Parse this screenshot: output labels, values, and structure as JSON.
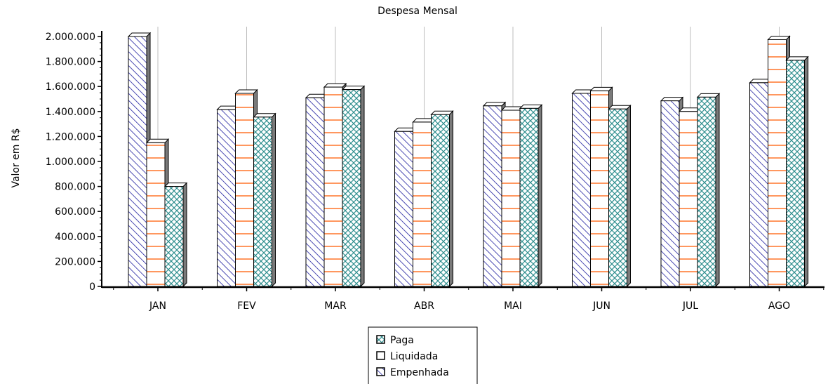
{
  "chart_data": {
    "type": "bar",
    "title": "Despesa Mensal",
    "xlabel": "",
    "ylabel": "Valor em R$",
    "categories": [
      "JAN",
      "FEV",
      "MAR",
      "ABR",
      "MAI",
      "JUN",
      "JUL",
      "AGO"
    ],
    "series": [
      {
        "name": "Empenhada",
        "values": [
          2000000,
          1415000,
          1510000,
          1240000,
          1445000,
          1545000,
          1485000,
          1630000
        ]
      },
      {
        "name": "Liquidada",
        "values": [
          1150000,
          1545000,
          1595000,
          1315000,
          1410000,
          1565000,
          1400000,
          1975000
        ]
      },
      {
        "name": "Paga",
        "values": [
          800000,
          1355000,
          1575000,
          1375000,
          1425000,
          1420000,
          1515000,
          1810000
        ]
      }
    ],
    "ylim": [
      0,
      2000000
    ],
    "yticks": [
      "0",
      "200.000",
      "400.000",
      "600.000",
      "800.000",
      "1.000.000",
      "1.200.000",
      "1.400.000",
      "1.600.000",
      "1.800.000",
      "2.000.000"
    ],
    "legend": {
      "placement": "bottom-center",
      "items": [
        "Paga",
        "Liquidada",
        "Empenhada"
      ]
    },
    "grid": "vertical-lines",
    "colors": {
      "Empenhada": "#1f1f9f",
      "Liquidada": "#ff6a1a",
      "Paga": "#2f8f8f"
    }
  }
}
